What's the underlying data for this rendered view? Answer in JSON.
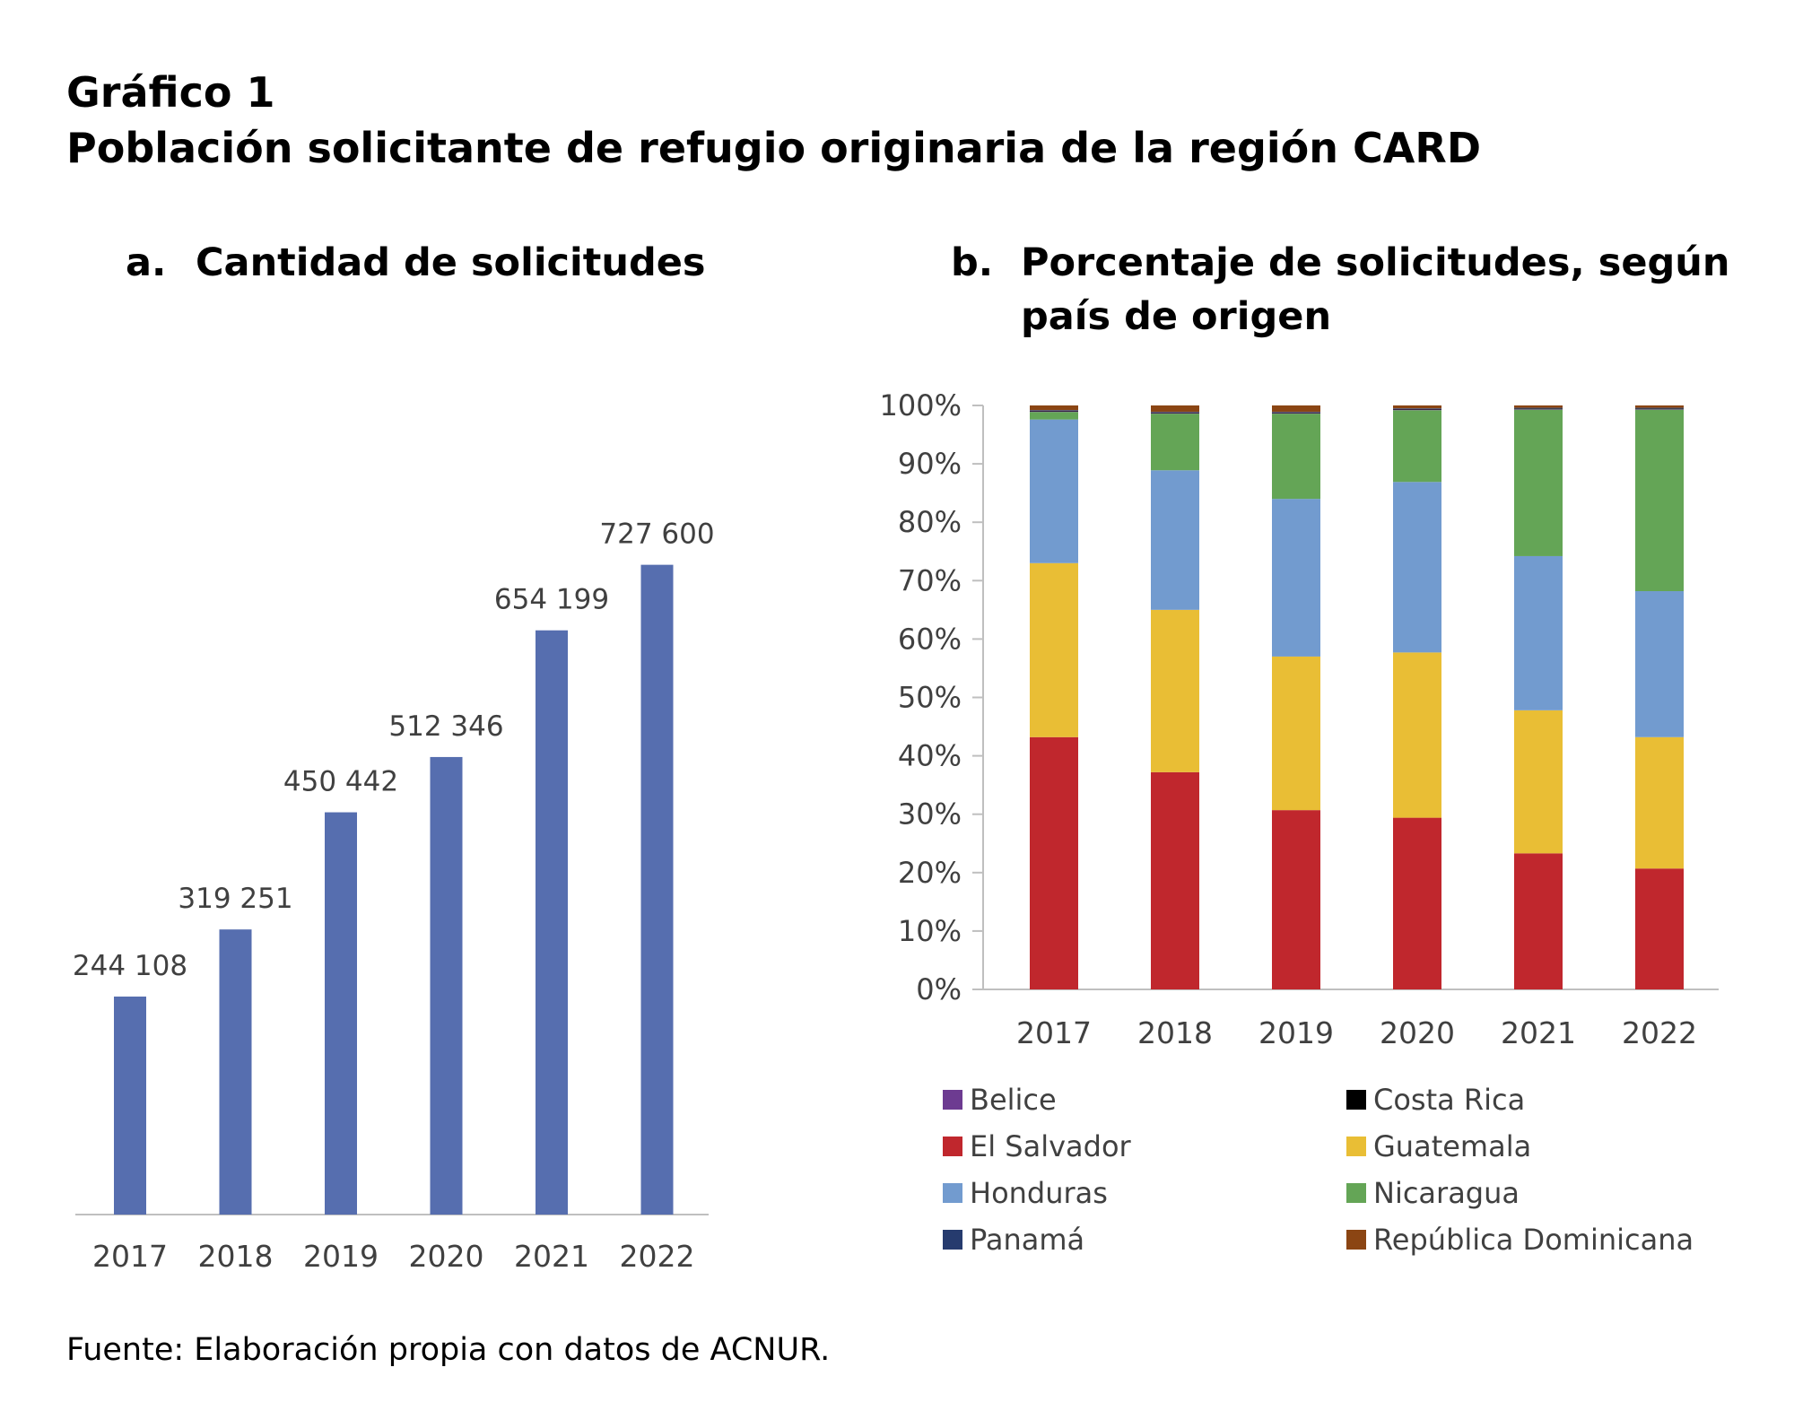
{
  "figure": {
    "label": "Gráfico 1",
    "title": "Población solicitante de refugio originaria de la región CARD",
    "source": "Fuente: Elaboración propia con datos de ACNUR."
  },
  "chart_data": [
    {
      "id": "a",
      "type": "bar",
      "letter": "a.",
      "title": "Cantidad de solicitudes",
      "categories": [
        "2017",
        "2018",
        "2019",
        "2020",
        "2021",
        "2022"
      ],
      "values": [
        244108,
        319251,
        450442,
        512346,
        654199,
        727600
      ],
      "value_labels": [
        "244 108",
        "319 251",
        "450 442",
        "512 346",
        "654 199",
        "727 600"
      ],
      "ylim": [
        0,
        900000
      ],
      "color": "#566eaf",
      "grid": false
    },
    {
      "id": "b",
      "type": "bar",
      "stacked": true,
      "letter": "b.",
      "title_lines": [
        "Porcentaje de solicitudes, según",
        "país de origen"
      ],
      "categories": [
        "2017",
        "2018",
        "2019",
        "2020",
        "2021",
        "2022"
      ],
      "ylim": [
        0,
        100
      ],
      "yticks": [
        "0%",
        "10%",
        "20%",
        "30%",
        "40%",
        "50%",
        "60%",
        "70%",
        "80%",
        "90%",
        "100%"
      ],
      "legend_position": "bottom",
      "series": [
        {
          "name": "El Salvador",
          "color": "#c0272d",
          "values": [
            43.2,
            37.2,
            30.7,
            29.4,
            23.3,
            20.7
          ]
        },
        {
          "name": "Guatemala",
          "color": "#e9be35",
          "values": [
            29.8,
            27.8,
            26.3,
            28.3,
            24.5,
            22.5
          ]
        },
        {
          "name": "Honduras",
          "color": "#729bcf",
          "values": [
            24.6,
            23.9,
            27.0,
            29.2,
            26.4,
            25.0
          ]
        },
        {
          "name": "Nicaragua",
          "color": "#64a556",
          "values": [
            1.3,
            9.7,
            14.6,
            12.3,
            25.1,
            31.1
          ]
        },
        {
          "name": "Belice",
          "color": "#6d3b91",
          "values": [
            0.1,
            0.1,
            0.1,
            0.1,
            0.1,
            0.1
          ]
        },
        {
          "name": "Costa Rica",
          "color": "#000000",
          "values": [
            0.1,
            0.1,
            0.1,
            0.1,
            0.1,
            0.1
          ]
        },
        {
          "name": "Panamá",
          "color": "#263b6e",
          "values": [
            0.1,
            0.1,
            0.1,
            0.1,
            0.1,
            0.1
          ]
        },
        {
          "name": "República Dominicana",
          "color": "#8b4513",
          "values": [
            0.8,
            1.1,
            1.1,
            0.5,
            0.4,
            0.4
          ]
        }
      ],
      "legend_order": [
        "Belice",
        "Costa Rica",
        "El Salvador",
        "Guatemala",
        "Honduras",
        "Nicaragua",
        "Panamá",
        "República Dominicana"
      ]
    }
  ]
}
